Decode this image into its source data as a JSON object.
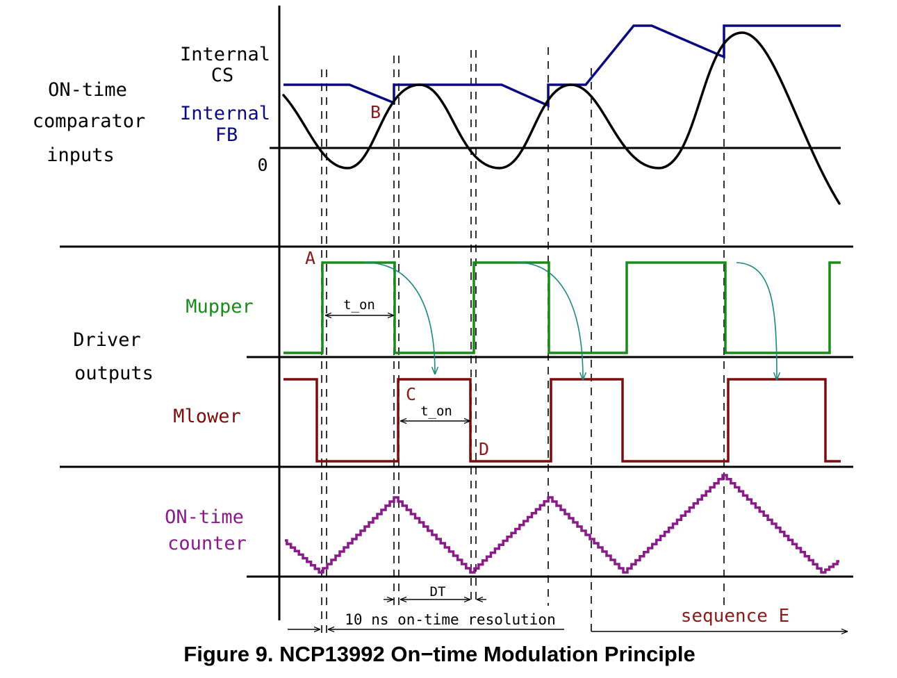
{
  "figure": {
    "caption": "Figure 9. NCP13992 On−time Modulation Principle"
  },
  "sections": {
    "comparator": {
      "line1": "ON-time",
      "line2": "comparator",
      "line3": "inputs"
    },
    "driver": {
      "line1": "Driver",
      "line2": "outputs"
    }
  },
  "signals": {
    "internal_cs": {
      "line1": "Internal",
      "line2": "CS",
      "color": "#000000"
    },
    "internal_fb": {
      "line1": "Internal",
      "line2": "FB",
      "color": "#0a0a80"
    },
    "zero_label": "0",
    "mupper": {
      "label": "Mupper",
      "color": "#1a8a1a"
    },
    "mlower": {
      "label": "Mlower",
      "color": "#7a0c0c"
    },
    "ontime_counter": {
      "line1": "ON-time",
      "line2": "counter",
      "color": "#8a1a8a"
    }
  },
  "markers": {
    "A": "A",
    "B": "B",
    "C": "C",
    "D": "D",
    "marker_color": "#8b1a1a"
  },
  "annotations": {
    "t_on_upper": "t_on",
    "t_on_lower": "t_on",
    "dt": "DT",
    "resolution": "10 ns on-time resolution",
    "sequence": "sequence E",
    "arrow_color": "#1a8a7a"
  }
}
